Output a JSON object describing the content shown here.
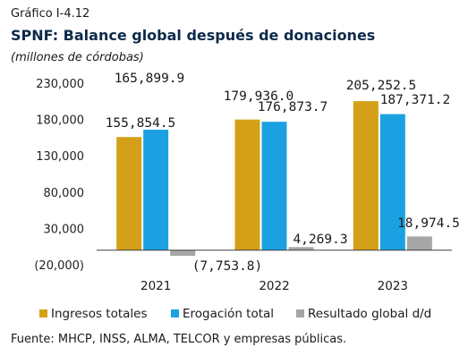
{
  "header": {
    "kicker": "Gráfico I-4.12",
    "title": "SPNF: Balance global después de donaciones",
    "units": "(millones de córdobas)"
  },
  "chart_data": {
    "type": "bar",
    "categories": [
      "2021",
      "2022",
      "2023"
    ],
    "series": [
      {
        "name": "Ingresos totales",
        "color": "#D4A017",
        "values": [
          155854.5,
          179936.0,
          205252.5
        ],
        "labels": [
          "155,854.5",
          "179,936.0",
          "205,252.5"
        ]
      },
      {
        "name": "Erogación total",
        "color": "#1BA1E2",
        "values": [
          165899.9,
          176873.7,
          187371.2
        ],
        "labels": [
          "165,899.9",
          "176,873.7",
          "187,371.2"
        ]
      },
      {
        "name": "Resultado global d/d",
        "color": "#A6A6A6",
        "values": [
          -7753.8,
          4269.3,
          18974.5
        ],
        "labels": [
          "(7,753.8)",
          "4,269.3",
          "18,974.5"
        ]
      }
    ],
    "yticks": [
      -20000,
      30000,
      80000,
      130000,
      180000,
      230000
    ],
    "ytick_labels": [
      "(20,000)",
      "30,000",
      "80,000",
      "130,000",
      "180,000",
      "230,000"
    ],
    "ylim": [
      -20000,
      230000
    ],
    "grid": false,
    "legend": "bottom"
  },
  "footer": {
    "source": "Fuente: MHCP, INSS, ALMA, TELCOR  y empresas públicas."
  }
}
